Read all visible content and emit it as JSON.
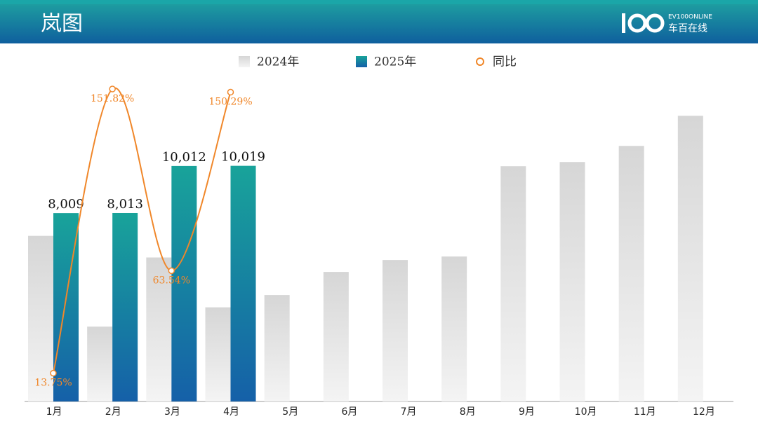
{
  "header": {
    "title": "岚图",
    "logo_top": "EV100ONLINE",
    "logo_bottom": "车百在线"
  },
  "chart_data": {
    "type": "bar",
    "categories": [
      "1月",
      "2月",
      "3月",
      "4月",
      "5月",
      "6月",
      "7月",
      "8月",
      "9月",
      "10月",
      "11月",
      "12月"
    ],
    "series": [
      {
        "name": "2024年",
        "color": "#dcdcdc",
        "values": [
          7041,
          3182,
          6122,
          4003,
          4525,
          5508,
          6014,
          6163,
          10003,
          10181,
          10866,
          12146
        ]
      },
      {
        "name": "2025年",
        "color": "#138a9a",
        "values": [
          8009,
          8013,
          10012,
          10019,
          null,
          null,
          null,
          null,
          null,
          null,
          null,
          null
        ],
        "value_labels": [
          "8,009",
          "8,013",
          "10,012",
          "10,019",
          null,
          null,
          null,
          null,
          null,
          null,
          null,
          null
        ]
      },
      {
        "name": "同比",
        "type": "line",
        "axis": "y2",
        "color": "#f0872a",
        "values": [
          13.75,
          151.82,
          63.54,
          150.29,
          null,
          null,
          null,
          null,
          null,
          null,
          null,
          null
        ],
        "value_labels": [
          "13.75%",
          "151.82%",
          "63.54%",
          "150.29%",
          null,
          null,
          null,
          null,
          null,
          null,
          null,
          null
        ]
      }
    ],
    "ylim": [
      0,
      14000
    ],
    "y2lim": [
      0,
      160
    ],
    "legend": "top"
  }
}
